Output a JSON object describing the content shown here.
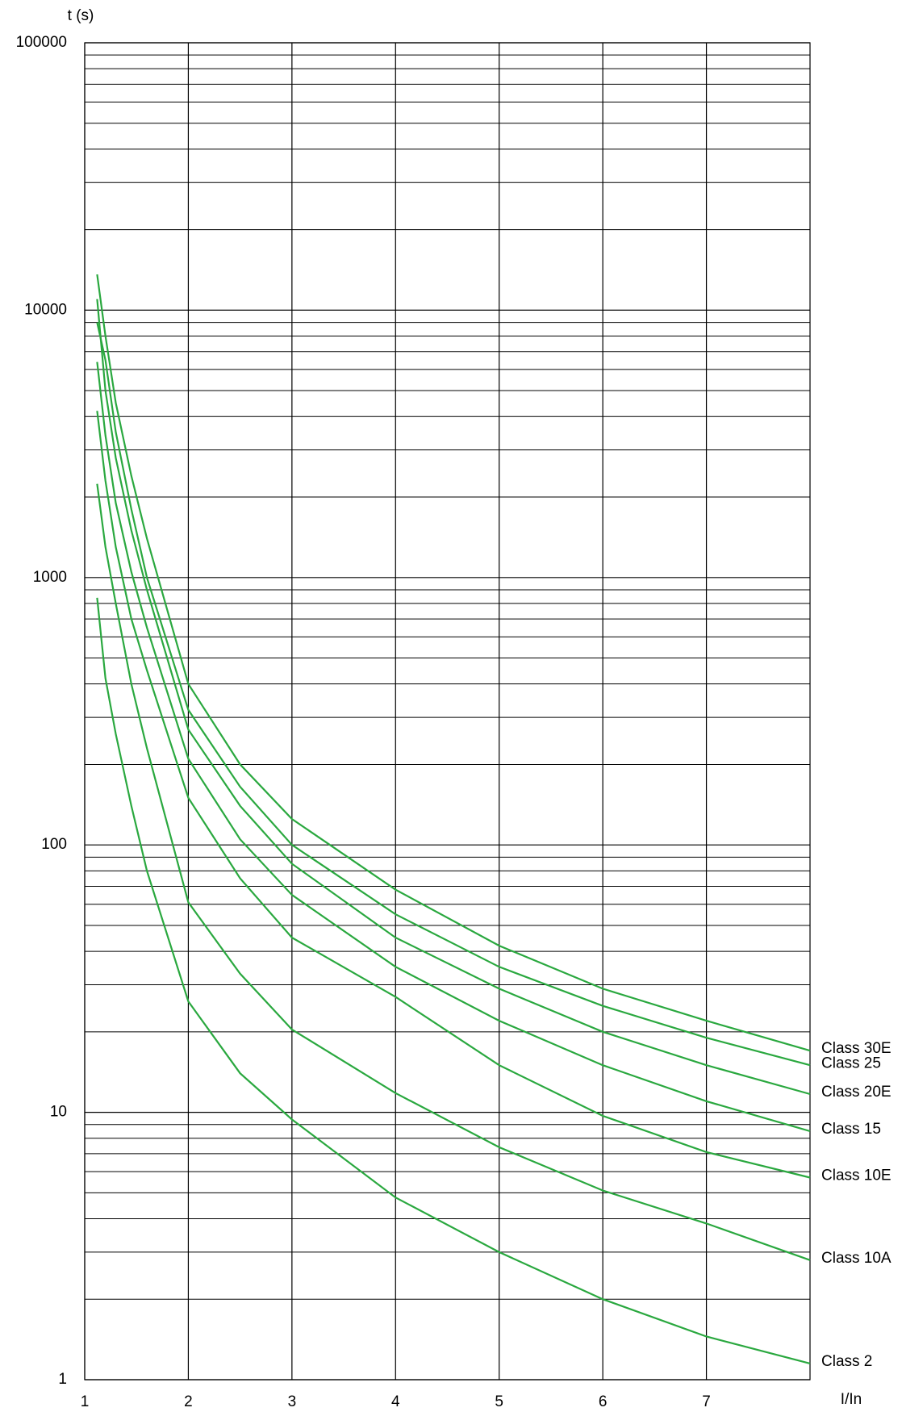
{
  "chart_data": {
    "type": "line",
    "y_label": "t (s)",
    "x_label": "I/In",
    "log_y": true,
    "grid": true,
    "minor_grid": true,
    "xlim": [
      1,
      8
    ],
    "xticks": [
      1,
      2,
      3,
      4,
      5,
      6,
      7
    ],
    "ylim": [
      1,
      100000
    ],
    "yticks": [
      1,
      10,
      100,
      1000,
      10000,
      100000
    ],
    "x": [
      1.12,
      1.2,
      1.3,
      1.45,
      1.6,
      2,
      2.5,
      3,
      4,
      5,
      6,
      7,
      8
    ],
    "series": [
      {
        "name": "Class 30E",
        "color": "#2aa83f",
        "values": [
          13600,
          8000,
          4500,
          2400,
          1400,
          400,
          200,
          125,
          68,
          42,
          29,
          22,
          17
        ]
      },
      {
        "name": "Class 25",
        "color": "#2aa83f",
        "values": [
          9000,
          6500,
          3500,
          1800,
          1000,
          320,
          165,
          100,
          55,
          35,
          25,
          19,
          15
        ]
      },
      {
        "name": "Class 20E",
        "color": "#2aa83f",
        "values": [
          11000,
          5000,
          2800,
          1500,
          900,
          270,
          140,
          85,
          45,
          29,
          20,
          15,
          11.7
        ]
      },
      {
        "name": "Class 15",
        "color": "#2aa83f",
        "values": [
          6400,
          3400,
          1900,
          1050,
          650,
          210,
          105,
          65,
          35,
          22,
          15,
          11,
          8.5
        ]
      },
      {
        "name": "Class 10E",
        "color": "#2aa83f",
        "values": [
          4200,
          2300,
          1300,
          700,
          450,
          150,
          75,
          45,
          27,
          15,
          9.7,
          7.1,
          5.7
        ]
      },
      {
        "name": "Class 10A",
        "color": "#2aa83f",
        "values": [
          2240,
          1300,
          800,
          400,
          230,
          61,
          33,
          20.4,
          11.8,
          7.4,
          5.1,
          3.84,
          2.8
        ]
      },
      {
        "name": "Class 2",
        "color": "#2aa83f",
        "values": [
          840,
          420,
          260,
          140,
          80,
          26,
          14,
          9.4,
          4.8,
          3.0,
          2.0,
          1.45,
          1.15
        ]
      }
    ]
  }
}
